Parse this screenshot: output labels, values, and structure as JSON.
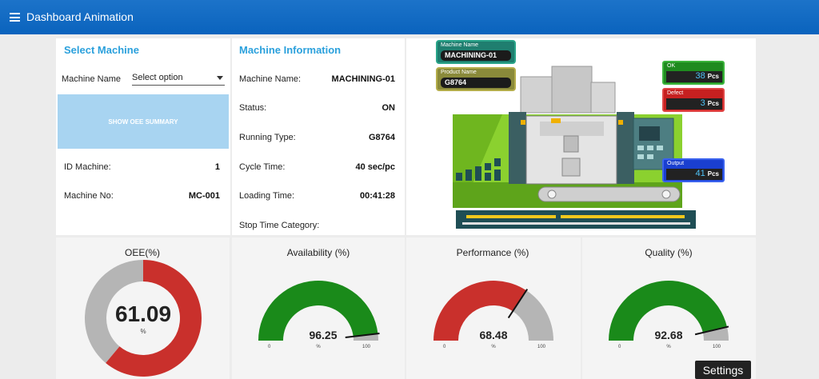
{
  "app": {
    "title": "Dashboard Animation"
  },
  "select_machine": {
    "title": "Select Machine",
    "machine_name_label": "Machine Name",
    "select_value": "Select option",
    "oee_button": "SHOW OEE SUMMARY",
    "id_label": "ID Machine:",
    "id_value": "1",
    "no_label": "Machine No:",
    "no_value": "MC-001"
  },
  "machine_info": {
    "title": "Machine Information",
    "rows": [
      {
        "label": "Machine Name:",
        "value": "MACHINING-01"
      },
      {
        "label": "Status:",
        "value": "ON"
      },
      {
        "label": "Running Type:",
        "value": "G8764"
      },
      {
        "label": "Cycle Time:",
        "value": "40 sec/pc"
      },
      {
        "label": "Loading Time:",
        "value": "00:41:28"
      },
      {
        "label": "Stop Time Category:",
        "value": ""
      }
    ]
  },
  "machine_panel": {
    "machine_name_label": "Machine Name",
    "machine_name_value": "MACHINING-01",
    "product_name_label": "Product Name",
    "product_name_value": "G8764",
    "ok_label": "OK",
    "ok_value": "38",
    "defect_label": "Defect",
    "defect_value": "3",
    "output_label": "Output",
    "output_value": "41",
    "unit": "Pcs"
  },
  "gauges": {
    "oee": {
      "title": "OEE(%)",
      "value": "61.09",
      "value_num": 61.09,
      "unit": "%"
    },
    "availability": {
      "title": "Availability (%)",
      "value": "96.25",
      "value_num": 96.25,
      "unit": "%",
      "min": "0",
      "max": "100"
    },
    "performance": {
      "title": "Performance (%)",
      "value": "68.48",
      "value_num": 68.48,
      "unit": "%",
      "min": "0",
      "max": "100"
    },
    "quality": {
      "title": "Quality (%)",
      "value": "92.68",
      "value_num": 92.68,
      "unit": "%",
      "min": "0",
      "max": "100"
    }
  },
  "colors": {
    "good": "#1a8a1a",
    "bad": "#c9302c",
    "rest": "#b5b5b5",
    "accent": "#2aa0dc",
    "topbar": "#0a63bd"
  },
  "tooltip": {
    "settings": "Settings"
  }
}
